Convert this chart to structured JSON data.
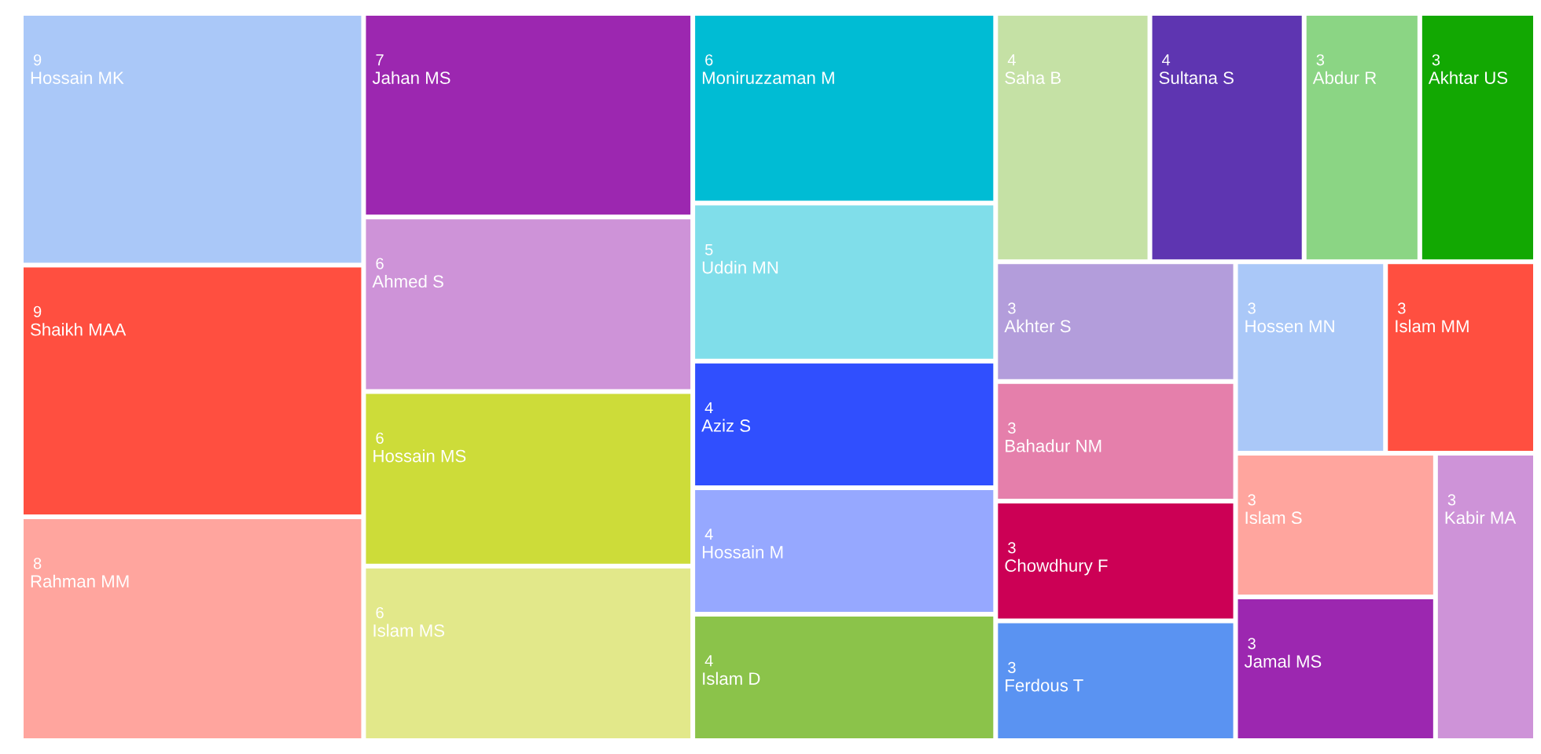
{
  "chart_data": {
    "type": "other",
    "categories": [
      "Hossain MK",
      "Shaikh MAA",
      "Rahman MM",
      "Jahan MS",
      "Ahmed S",
      "Hossain MS",
      "Islam MS",
      "Moniruzzaman M",
      "Uddin MN",
      "Aziz S",
      "Hossain M",
      "Islam D",
      "Saha B",
      "Sultana S",
      "Abdur R",
      "Akhtar US",
      "Akhter S",
      "Bahadur NM",
      "Chowdhury F",
      "Ferdous T",
      "Hossen MN",
      "Islam MM",
      "Islam S",
      "Jamal MS",
      "Kabir MA"
    ],
    "values": [
      9,
      9,
      8,
      7,
      6,
      6,
      6,
      6,
      5,
      4,
      4,
      4,
      4,
      4,
      3,
      3,
      3,
      3,
      3,
      3,
      3,
      3,
      3,
      3,
      3
    ],
    "colors": [
      "#aac8f8",
      "#ff4f40",
      "#ffa59e",
      "#9c27b0",
      "#ce93d8",
      "#cddc39",
      "#e2e88a",
      "#00bcd4",
      "#80deea",
      "#304ffe",
      "#96a8ff",
      "#8bc34a",
      "#c5e1a5",
      "#5e35b1",
      "#8bd584",
      "#12a802",
      "#b39ddb",
      "#e57fab",
      "#cc0055",
      "#5a93f2",
      "#aac8f8",
      "#ff4f40",
      "#ffa59e",
      "#9c27b0",
      "#ce93d8"
    ],
    "data_labels": true
  }
}
